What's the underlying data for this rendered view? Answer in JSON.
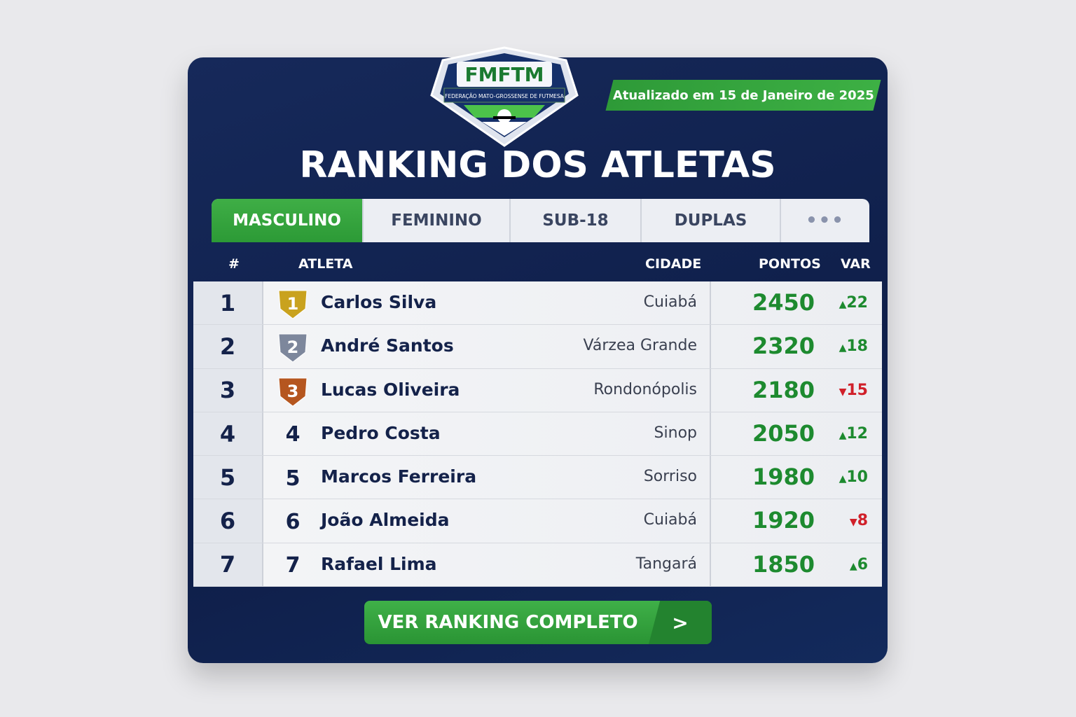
{
  "logo": {
    "abbr": "FMFTM",
    "full": "FEDERAÇÃO MATO-GROSSENSE DE FUTMESA"
  },
  "updated": "Atualizado em 15 de Janeiro de 2025",
  "title": "RANKING DOS ATLETAS",
  "tabs": [
    {
      "label": "MASCULINO",
      "active": true
    },
    {
      "label": "FEMININO"
    },
    {
      "label": "SUB-18"
    },
    {
      "label": "DUPLAS"
    },
    {
      "label": "•••",
      "icon": "more-icon"
    }
  ],
  "columns": {
    "rank": "#",
    "athlete": "ATLETA",
    "city": "CIDADE",
    "points": "PONTOS",
    "var": "VAR"
  },
  "rows": [
    {
      "rank": "1",
      "badge": "1",
      "medal": "gold",
      "name": "Carlos Silva",
      "city": "Cuiabá",
      "points": "2450",
      "dir": "up",
      "var": "22"
    },
    {
      "rank": "2",
      "badge": "2",
      "medal": "silver",
      "name": "André Santos",
      "city": "Várzea Grande",
      "points": "2320",
      "dir": "up",
      "var": "18"
    },
    {
      "rank": "3",
      "badge": "3",
      "medal": "bronze",
      "name": "Lucas Oliveira",
      "city": "Rondonópolis",
      "points": "2180",
      "dir": "down",
      "var": "15"
    },
    {
      "rank": "4",
      "badge": "4",
      "name": "Pedro Costa",
      "city": "Sinop",
      "points": "2050",
      "dir": "up",
      "var": "12"
    },
    {
      "rank": "5",
      "badge": "5",
      "name": "Marcos Ferreira",
      "city": "Sorriso",
      "points": "1980",
      "dir": "up",
      "var": "10"
    },
    {
      "rank": "6",
      "badge": "6",
      "name": "João Almeida",
      "city": "Cuiabá",
      "points": "1920",
      "dir": "down",
      "var": "8"
    },
    {
      "rank": "7",
      "badge": "7",
      "name": "Rafael Lima",
      "city": "Tangará",
      "points": "1850",
      "dir": "up",
      "var": "6"
    }
  ],
  "cta": {
    "label": "VER RANKING COMPLETO",
    "icon": "chevron-right-icon"
  },
  "colors": {
    "navy": "#0f1f4a",
    "green": "#2e9a38",
    "up": "#1d8a2f",
    "down": "#d0202a",
    "gold": "#c9a21e",
    "silver": "#7d879c",
    "bronze": "#b5561f"
  }
}
